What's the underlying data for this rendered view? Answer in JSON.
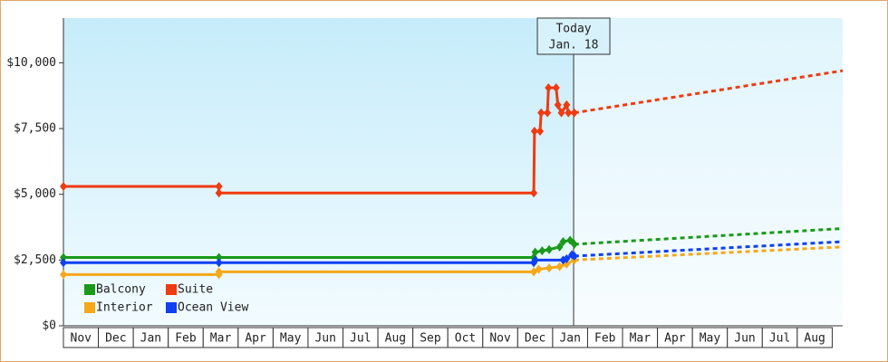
{
  "chart_data": {
    "type": "line",
    "categories": [
      "Nov",
      "Dec",
      "Jan",
      "Feb",
      "Mar",
      "Apr",
      "May",
      "Jun",
      "Jul",
      "Aug",
      "Sep",
      "Oct",
      "Nov",
      "Dec",
      "Jan",
      "Feb",
      "Mar",
      "Apr",
      "May",
      "Jun",
      "Jul",
      "Aug"
    ],
    "xlim": [
      0,
      22.3
    ],
    "ylim": [
      0,
      11700
    ],
    "yticks": [
      {
        "value": 0,
        "label": "$0"
      },
      {
        "value": 2500,
        "label": "$2,500"
      },
      {
        "value": 5000,
        "label": "$5,000"
      },
      {
        "value": 7500,
        "label": "$7,500"
      },
      {
        "value": 10000,
        "label": "$10,000"
      }
    ],
    "today": {
      "label": [
        "Today",
        "Jan. 18"
      ],
      "x": 14.6
    },
    "series": [
      {
        "name": "Balcony",
        "color": "#1a9a1a",
        "x": [
          0,
          4.45,
          13.46,
          13.5,
          13.7,
          13.9,
          14.2,
          14.3,
          14.5,
          14.62
        ],
        "values": [
          2600,
          2600,
          2600,
          2800,
          2850,
          2900,
          3000,
          3200,
          3250,
          3100
        ],
        "projection": {
          "x": [
            14.62,
            22.3
          ],
          "values": [
            3100,
            3700
          ]
        }
      },
      {
        "name": "Suite",
        "color": "#f03a10",
        "x": [
          0,
          4.45,
          4.45,
          13.46,
          13.48,
          13.64,
          13.67,
          13.85,
          13.88,
          14.1,
          14.15,
          14.25,
          14.4,
          14.45,
          14.62
        ],
        "values": [
          5300,
          5300,
          5050,
          5050,
          7400,
          7400,
          8100,
          8100,
          9050,
          9050,
          8400,
          8100,
          8400,
          8100,
          8100
        ],
        "projection": {
          "x": [
            14.62,
            22.3
          ],
          "values": [
            8100,
            9700
          ]
        }
      },
      {
        "name": "Interior",
        "color": "#f5a81a",
        "x": [
          0,
          4.45,
          4.45,
          13.46,
          13.6,
          13.9,
          14.2,
          14.4,
          14.62
        ],
        "values": [
          1950,
          1950,
          2050,
          2050,
          2150,
          2200,
          2250,
          2350,
          2500
        ],
        "projection": {
          "x": [
            14.62,
            22.3
          ],
          "values": [
            2500,
            3000
          ]
        }
      },
      {
        "name": "Ocean View",
        "color": "#1040f0",
        "x": [
          0,
          4.45,
          13.46,
          13.5,
          14.3,
          14.4,
          14.55,
          14.62
        ],
        "values": [
          2400,
          2400,
          2400,
          2500,
          2500,
          2550,
          2700,
          2650
        ],
        "projection": {
          "x": [
            14.62,
            22.3
          ],
          "values": [
            2650,
            3200
          ]
        }
      }
    ]
  }
}
